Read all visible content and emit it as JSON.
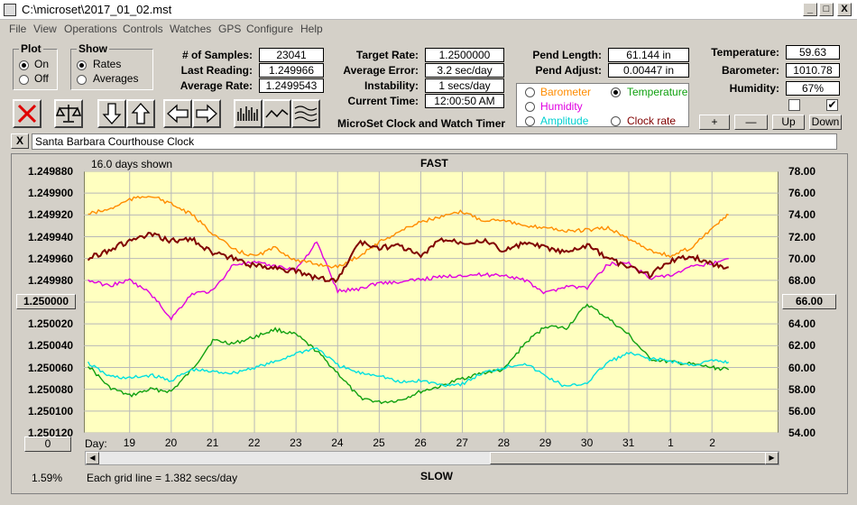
{
  "window": {
    "title": "C:\\microset\\2017_01_02.mst",
    "min": "_",
    "max": "□",
    "close": "X"
  },
  "menu": [
    "File",
    "View",
    "Operations",
    "Controls",
    "Watches",
    "GPS",
    "Configure",
    "Help"
  ],
  "plot_group": {
    "title": "Plot",
    "on": "On",
    "off": "Off",
    "selected": "On"
  },
  "show_group": {
    "title": "Show",
    "rates": "Rates",
    "averages": "Averages",
    "selected": "Rates"
  },
  "stats": {
    "samples_label": "# of Samples:",
    "samples": "23041",
    "last_label": "Last Reading:",
    "last": "1.249966",
    "avg_label": "Average Rate:",
    "avg": "1.2499543",
    "target_label": "Target Rate:",
    "target": "1.2500000",
    "avgerr_label": "Average Error:",
    "avgerr": "3.2 sec/day",
    "instab_label": "Instability:",
    "instab": "1 secs/day",
    "time_label": "Current Time:",
    "time": "12:00:50 AM",
    "pendlen_label": "Pend Length:",
    "pendlen": "61.144 in",
    "pendadj_label": "Pend Adjust:",
    "pendadj": "0.00447 in",
    "temp_label": "Temperature:",
    "temp": "59.63",
    "baro_label": "Barometer:",
    "baro": "1010.78",
    "hum_label": "Humidity:",
    "hum": "67%"
  },
  "app_label": "MicroSet Clock and Watch Timer",
  "aux": {
    "barometer": "Barometer",
    "temperature": "Temperature",
    "humidity": "Humidity",
    "amplitude": "Amplitude",
    "clock_rate": "Clock rate",
    "selected": "Temperature"
  },
  "adj_buttons": {
    "plus": "+",
    "minus": "—",
    "up": "Up",
    "down": "Down"
  },
  "checkboxes": {
    "first": "",
    "second": "✔"
  },
  "close_x": "X",
  "watch_name": "Santa Barbara Courthouse Clock",
  "chart_header": {
    "days_shown": "16.0 days shown",
    "fast": "FAST",
    "slow": "SLOW"
  },
  "left_button": "1.250000",
  "right_button": "66.00",
  "zero_button": "0",
  "pct": "1.59%",
  "grid_note": "Each grid line = 1.382 secs/day",
  "day_label": "Day:",
  "colors": {
    "plot_bg": "#ffffc0",
    "rate": "#800000",
    "barometer": "#ff8c00",
    "humidity": "#e000e0",
    "temperature": "#10a010",
    "amplitude": "#00e0e0",
    "grid": "#b8b8b8"
  },
  "chart_data": {
    "type": "line",
    "x_label": "Day",
    "x_ticks": [
      "19",
      "20",
      "21",
      "22",
      "23",
      "24",
      "25",
      "26",
      "27",
      "28",
      "29",
      "30",
      "31",
      "1",
      "2"
    ],
    "y_left_ticks": [
      "1.249880",
      "1.249900",
      "1.249920",
      "1.249940",
      "1.249960",
      "1.249980",
      "1.250000",
      "1.250020",
      "1.250040",
      "1.250060",
      "1.250080",
      "1.250100",
      "1.250120"
    ],
    "y_right_ticks": [
      "78.00",
      "76.00",
      "74.00",
      "72.00",
      "70.00",
      "68.00",
      "66.00",
      "64.00",
      "62.00",
      "60.00",
      "58.00",
      "56.00",
      "54.00"
    ],
    "series": [
      {
        "name": "",
        "x": [
          18.0,
          18.5,
          19.0,
          19.5,
          20.0,
          20.5,
          21.0,
          21.5,
          22.0,
          22.5,
          23.0,
          23.5,
          24.0,
          24.5,
          25.0,
          25.5,
          26.0,
          26.5,
          27.0,
          27.5,
          28.0,
          28.5,
          29.0,
          29.5,
          30.0,
          30.5,
          31.0,
          31.5,
          32.0,
          32.5,
          33.0,
          33.4
        ],
        "y": [
          1.24996,
          1.249952,
          1.249944,
          1.249938,
          1.249944,
          1.249942,
          1.249955,
          1.24996,
          1.249967,
          1.249968,
          1.249972,
          1.249978,
          1.24998,
          1.249945,
          1.24995,
          1.249948,
          1.249958,
          1.249942,
          1.249945,
          1.249943,
          1.249953,
          1.249946,
          1.24995,
          1.249955,
          1.249948,
          1.24996,
          1.249968,
          1.249975,
          1.249962,
          1.249958,
          1.249965,
          1.249968
        ]
      },
      {
        "name": "Barometer",
        "x": [
          18.0,
          18.5,
          19.0,
          19.5,
          20.0,
          20.5,
          21.0,
          21.5,
          22.0,
          22.5,
          23.0,
          23.5,
          24.0,
          24.5,
          25.0,
          25.5,
          26.0,
          26.5,
          27.0,
          27.5,
          28.0,
          28.5,
          29.0,
          29.5,
          30.0,
          30.5,
          31.0,
          31.5,
          32.0,
          32.5,
          33.0,
          33.4
        ],
        "y": [
          74.1,
          74.5,
          75.4,
          75.8,
          75.0,
          74.0,
          72.3,
          70.8,
          70.2,
          71.0,
          69.8,
          69.5,
          69.2,
          70.2,
          71.5,
          72.5,
          73.4,
          73.8,
          74.3,
          73.5,
          73.6,
          72.9,
          72.9,
          72.5,
          72.6,
          72.8,
          71.8,
          70.8,
          70.2,
          71.0,
          72.8,
          74.0
        ]
      },
      {
        "name": "Humidity",
        "x": [
          18.0,
          18.5,
          19.0,
          19.5,
          20.0,
          20.5,
          21.0,
          21.5,
          22.0,
          22.5,
          23.0,
          23.5,
          24.0,
          24.5,
          25.0,
          25.5,
          26.0,
          26.5,
          27.0,
          27.5,
          28.0,
          28.5,
          29.0,
          29.5,
          30.0,
          30.5,
          31.0,
          31.5,
          32.0,
          32.5,
          33.0,
          33.4
        ],
        "y": [
          68.0,
          67.5,
          68.0,
          66.8,
          64.5,
          66.8,
          67.0,
          69.5,
          69.6,
          69.3,
          69.0,
          71.5,
          67.0,
          67.2,
          67.8,
          67.8,
          68.1,
          68.3,
          68.5,
          68.5,
          68.5,
          68.0,
          66.8,
          67.5,
          67.3,
          69.5,
          69.6,
          68.2,
          68.4,
          69.2,
          69.6,
          70.0
        ]
      },
      {
        "name": "Temperature",
        "x": [
          18.0,
          18.5,
          19.0,
          19.5,
          20.0,
          20.5,
          21.0,
          21.5,
          22.0,
          22.5,
          23.0,
          23.5,
          24.0,
          24.5,
          25.0,
          25.5,
          26.0,
          26.5,
          27.0,
          27.5,
          28.0,
          28.5,
          29.0,
          29.5,
          30.0,
          30.5,
          31.0,
          31.5,
          32.0,
          32.5,
          33.0,
          33.4
        ],
        "y": [
          60.2,
          58.2,
          57.4,
          58.0,
          57.8,
          59.8,
          62.5,
          62.2,
          62.8,
          63.5,
          63.0,
          61.5,
          59.5,
          57.3,
          56.8,
          57.0,
          57.8,
          58.3,
          59.0,
          59.5,
          59.8,
          62.2,
          63.8,
          63.6,
          65.8,
          64.5,
          63.0,
          60.8,
          60.5,
          60.3,
          60.0,
          59.8
        ]
      },
      {
        "name": "Amplitude",
        "x": [
          18.0,
          18.5,
          19.0,
          19.5,
          20.0,
          20.5,
          21.0,
          21.5,
          22.0,
          22.5,
          23.0,
          23.5,
          24.0,
          24.5,
          25.0,
          25.5,
          26.0,
          26.5,
          27.0,
          27.5,
          28.0,
          28.5,
          29.0,
          29.5,
          30.0,
          30.5,
          31.0,
          31.5,
          32.0,
          32.5,
          33.0,
          33.4
        ],
        "y": [
          60.4,
          59.2,
          59.0,
          59.3,
          58.8,
          59.8,
          59.6,
          59.5,
          60.0,
          60.5,
          61.3,
          61.8,
          60.2,
          59.5,
          59.3,
          58.6,
          58.8,
          58.4,
          58.5,
          59.5,
          60.0,
          60.4,
          59.2,
          58.2,
          58.6,
          60.5,
          61.3,
          60.8,
          60.6,
          60.2,
          60.6,
          60.5
        ]
      }
    ]
  }
}
